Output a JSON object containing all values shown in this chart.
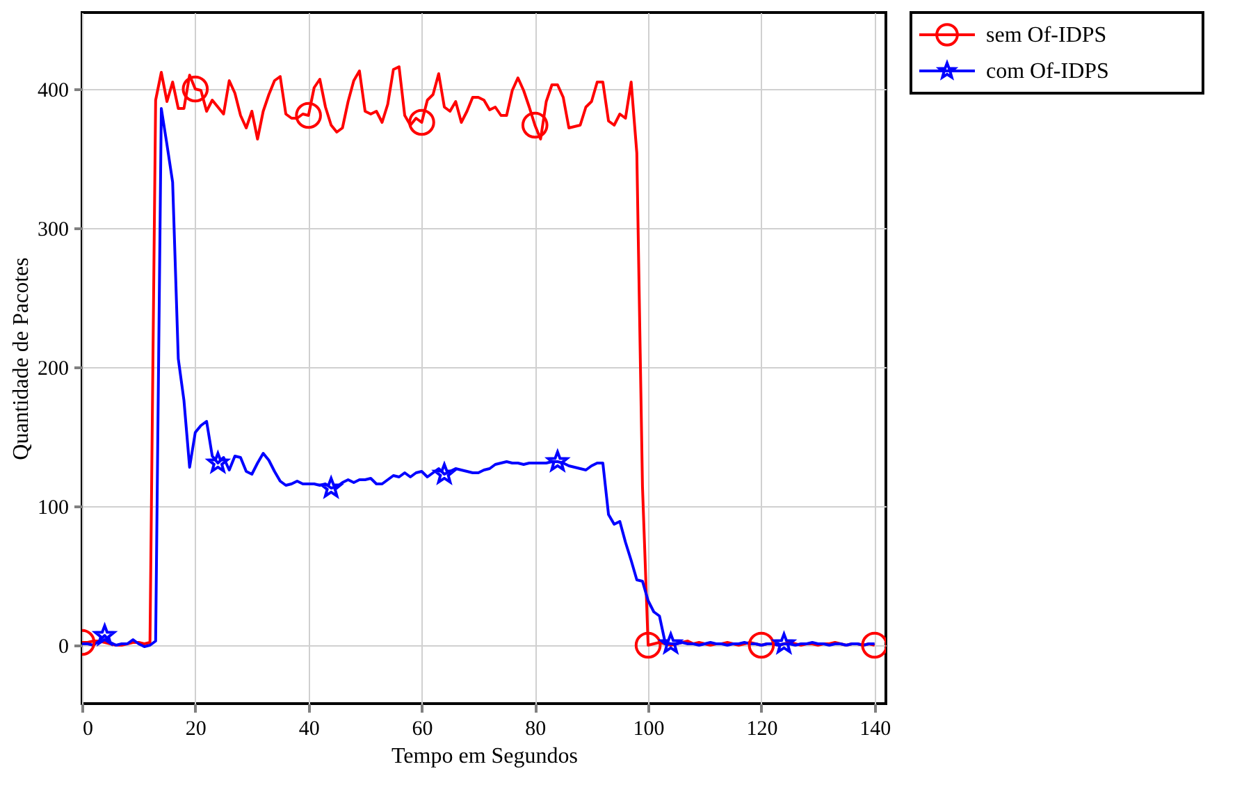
{
  "chart_data": {
    "type": "line",
    "xlabel": "Tempo em Segundos",
    "ylabel": "Quantidade de Pacotes",
    "xlim": [
      0,
      142
    ],
    "ylim": [
      -42,
      455
    ],
    "xticks": [
      0,
      20,
      40,
      60,
      80,
      100,
      120,
      140
    ],
    "yticks": [
      0,
      100,
      200,
      300,
      400
    ],
    "grid": true,
    "legend": "top right",
    "line_style": "solid",
    "x": [
      0,
      1,
      2,
      3,
      4,
      5,
      6,
      7,
      8,
      9,
      10,
      11,
      12,
      13,
      14,
      15,
      16,
      17,
      18,
      19,
      20,
      21,
      22,
      23,
      24,
      25,
      26,
      27,
      28,
      29,
      30,
      31,
      32,
      33,
      34,
      35,
      36,
      37,
      38,
      39,
      40,
      41,
      42,
      43,
      44,
      45,
      46,
      47,
      48,
      49,
      50,
      51,
      52,
      53,
      54,
      55,
      56,
      57,
      58,
      59,
      60,
      61,
      62,
      63,
      64,
      65,
      66,
      67,
      68,
      69,
      70,
      71,
      72,
      73,
      74,
      75,
      76,
      77,
      78,
      79,
      80,
      81,
      82,
      83,
      84,
      85,
      86,
      87,
      88,
      89,
      90,
      91,
      92,
      93,
      94,
      95,
      96,
      97,
      98,
      99,
      100,
      101,
      102,
      103,
      104,
      105,
      106,
      107,
      108,
      109,
      110,
      111,
      112,
      113,
      114,
      115,
      116,
      117,
      118,
      119,
      120,
      121,
      122,
      123,
      124,
      125,
      126,
      127,
      128,
      129,
      130,
      131,
      132,
      133,
      134,
      135,
      136,
      137,
      138,
      139,
      140
    ],
    "series": [
      {
        "name": "sem Of-IDPS",
        "color": "#ff0000",
        "values": [
          2,
          2,
          3,
          3,
          2,
          1,
          0,
          0,
          1,
          2,
          2,
          1,
          2,
          392,
          412,
          391,
          405,
          386,
          386,
          410,
          400,
          399,
          384,
          392,
          387,
          382,
          406,
          397,
          381,
          372,
          384,
          364,
          384,
          396,
          406,
          409,
          382,
          379,
          379,
          382,
          381,
          401,
          407,
          387,
          374,
          369,
          372,
          391,
          406,
          413,
          384,
          382,
          384,
          376,
          389,
          414,
          416,
          381,
          374,
          379,
          376,
          392,
          396,
          411,
          387,
          384,
          391,
          376,
          384,
          394,
          394,
          392,
          385,
          387,
          381,
          381,
          399,
          408,
          399,
          387,
          374,
          364,
          391,
          403,
          403,
          394,
          372,
          373,
          374,
          387,
          391,
          405,
          405,
          377,
          374,
          382,
          379,
          405,
          354,
          114,
          0,
          1,
          2,
          1,
          0,
          1,
          2,
          3,
          1,
          2,
          1,
          0,
          1,
          1,
          2,
          1,
          0,
          1,
          2,
          1,
          0,
          1,
          1,
          0,
          1,
          2,
          1,
          0,
          1,
          1,
          0,
          1,
          1,
          2,
          1,
          0,
          1,
          1,
          0,
          1,
          0
        ]
      },
      {
        "name": "com Of-IDPS",
        "color": "#0000ff",
        "values": [
          1,
          1,
          0,
          3,
          7,
          2,
          0,
          1,
          1,
          4,
          1,
          -1,
          0,
          3,
          386,
          360,
          333,
          206,
          176,
          128,
          153,
          158,
          161,
          136,
          131,
          135,
          126,
          136,
          135,
          125,
          123,
          131,
          138,
          133,
          125,
          118,
          115,
          116,
          118,
          116,
          116,
          116,
          115,
          116,
          113,
          114,
          117,
          119,
          117,
          119,
          119,
          120,
          116,
          116,
          119,
          122,
          121,
          124,
          121,
          124,
          125,
          121,
          124,
          127,
          123,
          125,
          127,
          126,
          125,
          124,
          124,
          126,
          127,
          130,
          131,
          132,
          131,
          131,
          130,
          131,
          131,
          131,
          131,
          132,
          132,
          131,
          129,
          128,
          127,
          126,
          129,
          131,
          131,
          94,
          87,
          89,
          74,
          61,
          47,
          46,
          32,
          24,
          21,
          2,
          1,
          1,
          2,
          1,
          1,
          0,
          1,
          2,
          1,
          1,
          0,
          1,
          1,
          2,
          1,
          1,
          0,
          1,
          1,
          0,
          1,
          1,
          0,
          1,
          1,
          2,
          1,
          1,
          0,
          1,
          1,
          0,
          1,
          1,
          0,
          1,
          1
        ]
      },
      {
        "type": "scatter",
        "color": "#ff0000",
        "marker": "circle",
        "x": [
          0,
          20,
          40,
          60,
          80,
          100,
          120,
          140
        ],
        "values": [
          2,
          400,
          381,
          376,
          374,
          0,
          0,
          0
        ]
      },
      {
        "type": "scatter",
        "color": "#0000ff",
        "marker": "star",
        "x": [
          4,
          24,
          44,
          64,
          84,
          104,
          124
        ],
        "values": [
          7,
          131,
          113,
          123,
          132,
          1,
          1
        ]
      }
    ]
  }
}
